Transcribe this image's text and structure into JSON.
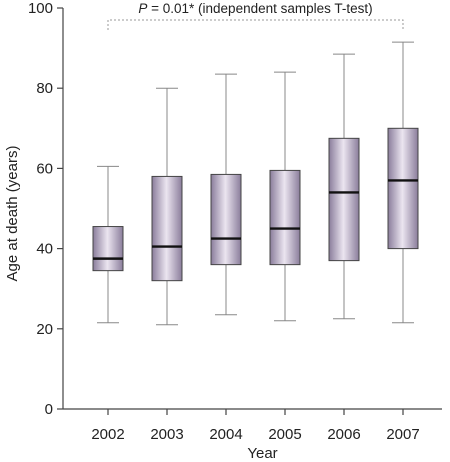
{
  "chart_data": {
    "type": "boxplot",
    "xlabel": "Year",
    "ylabel": "Age at death (years)",
    "ylim": [
      0,
      100
    ],
    "yticks": [
      0,
      20,
      40,
      60,
      80,
      100
    ],
    "categories": [
      "2002",
      "2003",
      "2004",
      "2005",
      "2006",
      "2007"
    ],
    "boxes": [
      {
        "category": "2002",
        "min": 21.5,
        "q1": 34.5,
        "median": 37.5,
        "q3": 45.5,
        "max": 60.5
      },
      {
        "category": "2003",
        "min": 21,
        "q1": 32,
        "median": 40.5,
        "q3": 58,
        "max": 80
      },
      {
        "category": "2004",
        "min": 23.5,
        "q1": 36,
        "median": 42.5,
        "q3": 58.5,
        "max": 83.5
      },
      {
        "category": "2005",
        "min": 22,
        "q1": 36,
        "median": 45,
        "q3": 59.5,
        "max": 84
      },
      {
        "category": "2006",
        "min": 22.5,
        "q1": 37,
        "median": 54,
        "q3": 67.5,
        "max": 88.5
      },
      {
        "category": "2007",
        "min": 21.5,
        "q1": 40,
        "median": 57,
        "q3": 70,
        "max": 91.5
      }
    ],
    "annotation": {
      "p_symbol": "P",
      "text": " = 0.01* (independent samples T-test)",
      "from": "2002",
      "to": "2007"
    },
    "colors": {
      "box_light": "#ebe5f0",
      "box_dark": "#8a7d9b",
      "median": "#111111",
      "whisker": "#888888"
    }
  }
}
